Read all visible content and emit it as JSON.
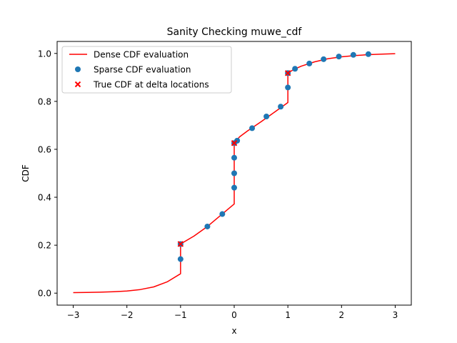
{
  "chart_data": {
    "type": "line",
    "title": "Sanity Checking muwe_cdf",
    "xlabel": "x",
    "ylabel": "CDF",
    "xlim": [
      -3.3,
      3.3
    ],
    "ylim": [
      -0.05,
      1.05
    ],
    "xticks": [
      -3,
      -2,
      -1,
      0,
      1,
      2,
      3
    ],
    "xtick_labels": [
      "−3",
      "−2",
      "−1",
      "0",
      "1",
      "2",
      "3"
    ],
    "yticks": [
      0.0,
      0.2,
      0.4,
      0.6,
      0.8,
      1.0
    ],
    "ytick_labels": [
      "0.0",
      "0.2",
      "0.4",
      "0.6",
      "0.8",
      "1.0"
    ],
    "grid": false,
    "legend_position": "top-left",
    "series": [
      {
        "name": "Dense CDF evaluation",
        "kind": "line",
        "color": "#ff0000",
        "points": [
          [
            -3.0,
            0.002
          ],
          [
            -2.75,
            0.003
          ],
          [
            -2.5,
            0.004
          ],
          [
            -2.25,
            0.006
          ],
          [
            -2.0,
            0.009
          ],
          [
            -1.75,
            0.015
          ],
          [
            -1.5,
            0.026
          ],
          [
            -1.25,
            0.047
          ],
          [
            -1.0,
            0.081
          ],
          [
            -1.0,
            0.205
          ],
          [
            -0.75,
            0.238
          ],
          [
            -0.5,
            0.278
          ],
          [
            -0.25,
            0.325
          ],
          [
            0.0,
            0.372
          ],
          [
            0.0,
            0.626
          ],
          [
            0.1,
            0.652
          ],
          [
            0.25,
            0.677
          ],
          [
            0.5,
            0.715
          ],
          [
            0.75,
            0.755
          ],
          [
            1.0,
            0.795
          ],
          [
            1.0,
            0.918
          ],
          [
            1.1,
            0.932
          ],
          [
            1.25,
            0.947
          ],
          [
            1.5,
            0.965
          ],
          [
            1.75,
            0.978
          ],
          [
            2.0,
            0.986
          ],
          [
            2.25,
            0.991
          ],
          [
            2.5,
            0.995
          ],
          [
            2.75,
            0.997
          ],
          [
            3.0,
            0.999
          ]
        ]
      },
      {
        "name": "Sparse CDF evaluation",
        "kind": "scatter",
        "marker": "circle",
        "color": "#1f77b4",
        "points": [
          [
            -1.0,
            0.142
          ],
          [
            -1.0,
            0.205
          ],
          [
            -0.5,
            0.278
          ],
          [
            -0.222,
            0.33
          ],
          [
            0.0,
            0.44
          ],
          [
            0.0,
            0.5
          ],
          [
            0.0,
            0.565
          ],
          [
            0.0,
            0.626
          ],
          [
            0.055,
            0.636
          ],
          [
            0.333,
            0.688
          ],
          [
            0.6,
            0.737
          ],
          [
            0.866,
            0.778
          ],
          [
            1.0,
            0.858
          ],
          [
            1.0,
            0.918
          ],
          [
            1.133,
            0.936
          ],
          [
            1.4,
            0.958
          ],
          [
            1.666,
            0.976
          ],
          [
            1.95,
            0.987
          ],
          [
            2.22,
            0.994
          ],
          [
            2.5,
            0.997
          ]
        ]
      },
      {
        "name": "True CDF at delta locations",
        "kind": "scatter",
        "marker": "x",
        "color": "#ff0000",
        "points": [
          [
            -1.0,
            0.205
          ],
          [
            0.0,
            0.626
          ],
          [
            1.0,
            0.918
          ]
        ]
      }
    ]
  }
}
